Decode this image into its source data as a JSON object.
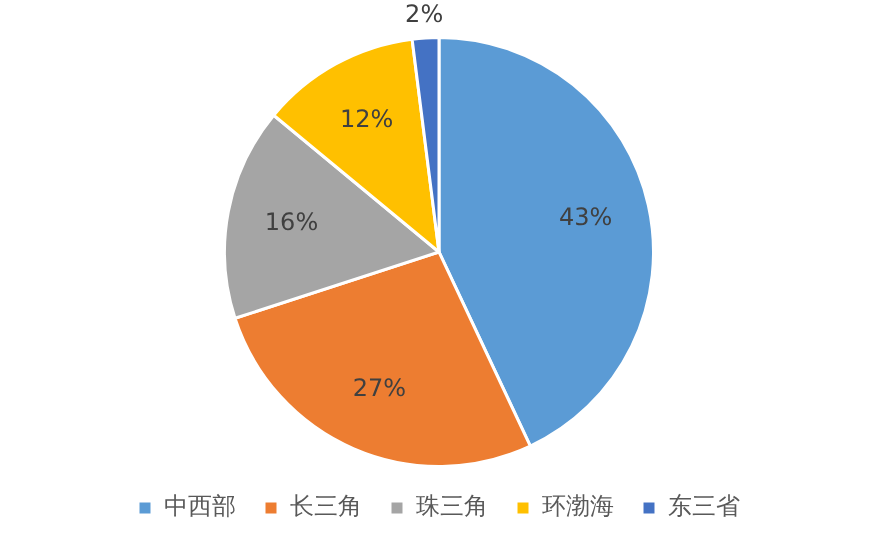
{
  "chart_data": {
    "type": "pie",
    "categories": [
      "中西部",
      "长三角",
      "珠三角",
      "环渤海",
      "东三省"
    ],
    "values": [
      43,
      27,
      16,
      12,
      2
    ],
    "colors": [
      "#5b9bd5",
      "#ed7d31",
      "#a5a5a5",
      "#ffc000",
      "#4472c4"
    ],
    "value_labels": [
      "43%",
      "27%",
      "16%",
      "12%",
      "2%"
    ],
    "legend": "bottom"
  }
}
